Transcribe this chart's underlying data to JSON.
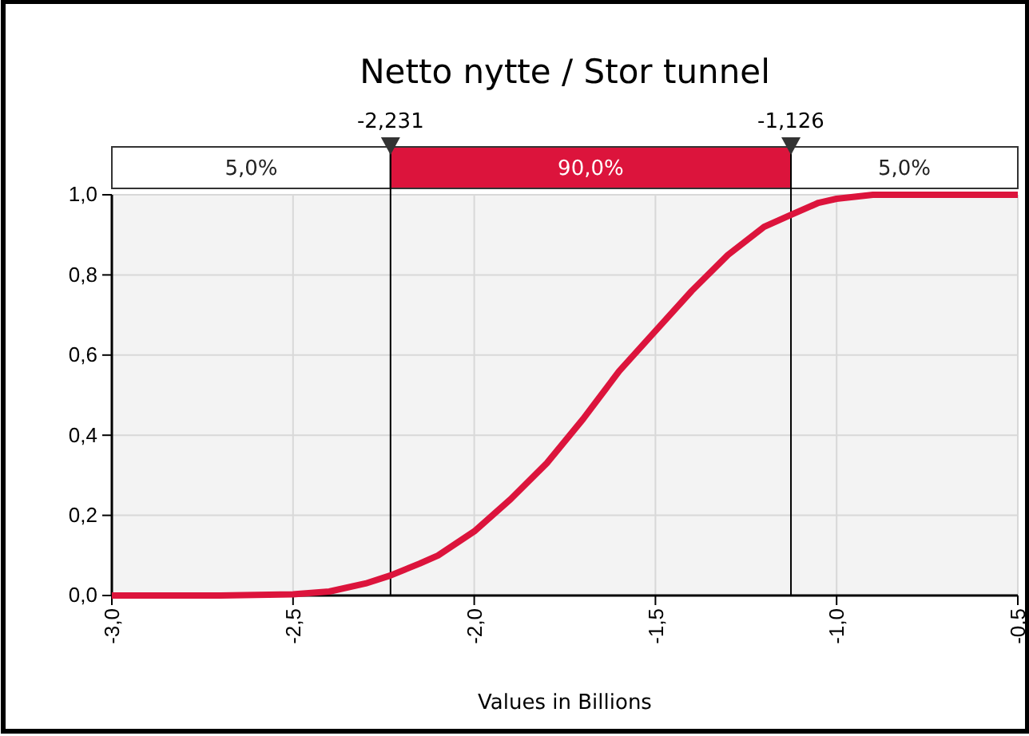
{
  "chart_data": {
    "type": "line",
    "title": "Netto nytte / Stor tunnel",
    "xlabel": "Values in Billions",
    "series": [
      {
        "color": "#dc143c",
        "x": [
          -3.0,
          -2.7,
          -2.5,
          -2.4,
          -2.3,
          -2.231,
          -2.15,
          -2.1,
          -2.0,
          -1.9,
          -1.8,
          -1.7,
          -1.6,
          -1.5,
          -1.4,
          -1.3,
          -1.2,
          -1.126,
          -1.05,
          -1.0,
          -0.9,
          -0.7,
          -0.5
        ],
        "values": [
          0,
          0,
          0.003,
          0.01,
          0.03,
          0.05,
          0.08,
          0.1,
          0.16,
          0.24,
          0.33,
          0.44,
          0.56,
          0.66,
          0.76,
          0.85,
          0.92,
          0.95,
          0.98,
          0.99,
          1.0,
          1.0,
          1.0
        ]
      }
    ],
    "xlim": [
      -3.0,
      -0.5
    ],
    "ylim": [
      0,
      1.0
    ],
    "xticks": [
      {
        "value": -3.0,
        "label": "-3,0"
      },
      {
        "value": -2.5,
        "label": "-2,5"
      },
      {
        "value": -2.0,
        "label": "-2,0"
      },
      {
        "value": -1.5,
        "label": "-1,5"
      },
      {
        "value": -1.0,
        "label": "-1,0"
      },
      {
        "value": -0.5,
        "label": "-0,5"
      }
    ],
    "yticks": [
      {
        "value": 0,
        "label": "0,0"
      },
      {
        "value": 0.2,
        "label": "0,2"
      },
      {
        "value": 0.4,
        "label": "0,4"
      },
      {
        "value": 0.6,
        "label": "0,6"
      },
      {
        "value": 0.8,
        "label": "0,8"
      },
      {
        "value": 1.0,
        "label": "1,0"
      }
    ],
    "ref_lines": [
      {
        "axis": "x",
        "value": -2.231,
        "label": "-2,231",
        "color": "#000000"
      },
      {
        "axis": "x",
        "value": -1.126,
        "label": "-1,126",
        "color": "#000000"
      }
    ],
    "annotations": [
      "5,0%",
      "90,0%",
      "5,0%"
    ],
    "grid": true,
    "line_style": "solid",
    "marker": "none"
  }
}
